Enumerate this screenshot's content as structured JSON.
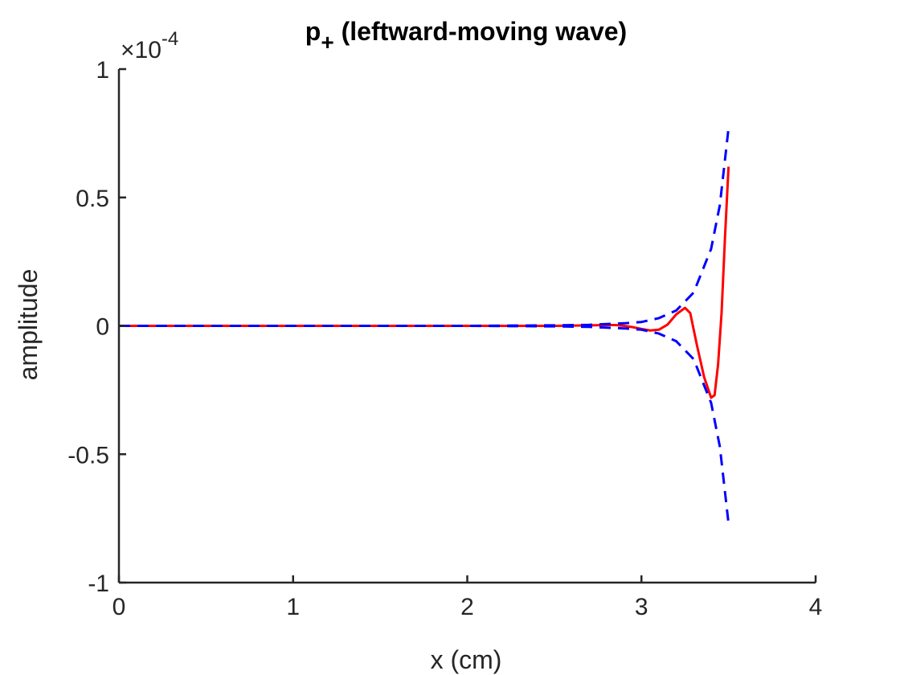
{
  "chart_data": {
    "type": "line",
    "title": "p",
    "title_subscript": "+",
    "title_rest": " (leftward-moving wave)",
    "xlabel": "x (cm)",
    "ylabel": "amplitude",
    "xlim": [
      0,
      4
    ],
    "ylim": [
      -1,
      1
    ],
    "y_scale_factor": {
      "times": "×10",
      "exponent": "-4"
    },
    "xticks": [
      0,
      1,
      2,
      3,
      4
    ],
    "xtick_labels": [
      "0",
      "1",
      "2",
      "3",
      "4"
    ],
    "yticks": [
      -1,
      -0.5,
      0,
      0.5,
      1
    ],
    "ytick_labels": [
      "-1",
      "-0.5",
      "0",
      "0.5",
      "1"
    ],
    "grid": false,
    "series": [
      {
        "color": "#ff0000",
        "style": "solid",
        "x": [
          0,
          0.5,
          1.0,
          1.5,
          2.0,
          2.5,
          2.7,
          2.8,
          2.85,
          2.9,
          2.95,
          3.0,
          3.05,
          3.1,
          3.15,
          3.2,
          3.25,
          3.28,
          3.32,
          3.36,
          3.4,
          3.42,
          3.44,
          3.46,
          3.48,
          3.5
        ],
        "values": [
          0,
          0,
          0,
          0,
          0,
          0,
          0.002,
          0.003,
          0.003,
          0.0,
          -0.005,
          -0.012,
          -0.018,
          -0.015,
          0.005,
          0.045,
          0.07,
          0.05,
          -0.08,
          -0.2,
          -0.28,
          -0.27,
          -0.15,
          0.05,
          0.35,
          0.62
        ]
      },
      {
        "color": "#0000ff",
        "style": "dashed",
        "x": [
          0,
          0.5,
          1.0,
          1.5,
          2.0,
          2.5,
          2.7,
          2.8,
          2.9,
          3.0,
          3.1,
          3.2,
          3.3,
          3.4,
          3.45,
          3.5
        ],
        "values": [
          0,
          0,
          0,
          0,
          0,
          0.002,
          0.004,
          0.007,
          0.01,
          0.015,
          0.03,
          0.06,
          0.13,
          0.3,
          0.47,
          0.77
        ]
      },
      {
        "color": "#0000ff",
        "style": "dashed",
        "x": [
          0,
          0.5,
          1.0,
          1.5,
          2.0,
          2.5,
          2.7,
          2.8,
          2.9,
          3.0,
          3.1,
          3.2,
          3.3,
          3.4,
          3.45,
          3.5
        ],
        "values": [
          0,
          0,
          0,
          0,
          0,
          -0.002,
          -0.004,
          -0.007,
          -0.01,
          -0.015,
          -0.03,
          -0.06,
          -0.13,
          -0.3,
          -0.47,
          -0.77
        ]
      }
    ]
  }
}
